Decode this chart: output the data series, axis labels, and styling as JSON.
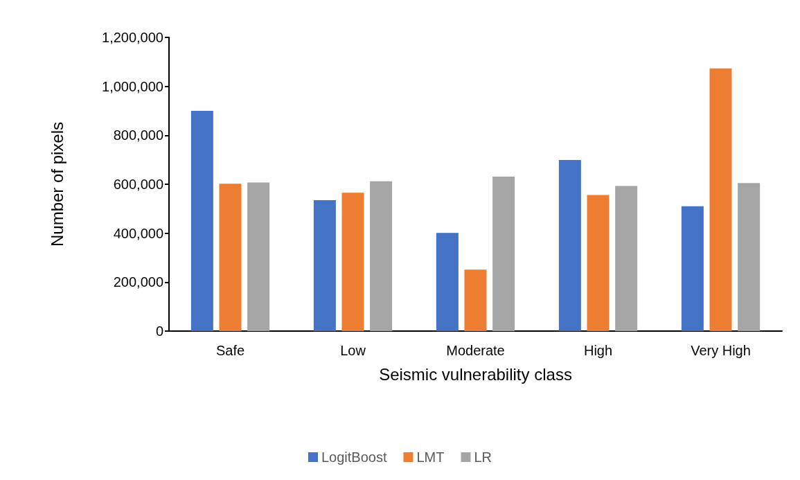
{
  "chart_data": {
    "type": "bar",
    "xlabel": "Seismic vulnerability class",
    "ylabel": "Number of pixels",
    "categories": [
      "Safe",
      "Low",
      "Moderate",
      "High",
      "Very High"
    ],
    "series": [
      {
        "name": "LogitBoost",
        "color": "#4472c4",
        "values": [
          900000,
          535000,
          401000,
          699000,
          510000
        ]
      },
      {
        "name": "LMT",
        "color": "#ed7d31",
        "values": [
          602000,
          565000,
          251000,
          556000,
          1073000
        ]
      },
      {
        "name": "LR",
        "color": "#a5a5a5",
        "values": [
          607000,
          612000,
          631000,
          593000,
          605000
        ]
      }
    ],
    "ylim": [
      0,
      1200000
    ],
    "yticks": [
      0,
      {
        "value": 200000,
        "label": "200,000"
      },
      {
        "value": 400000,
        "label": "400,000"
      },
      {
        "value": 600000,
        "label": "600,000"
      },
      {
        "value": 800000,
        "label": "800,000"
      },
      {
        "value": 1000000,
        "label": "1,000,000"
      },
      {
        "value": 1200000,
        "label": "1,200,000"
      }
    ],
    "grid": false,
    "legend": "bottom"
  }
}
